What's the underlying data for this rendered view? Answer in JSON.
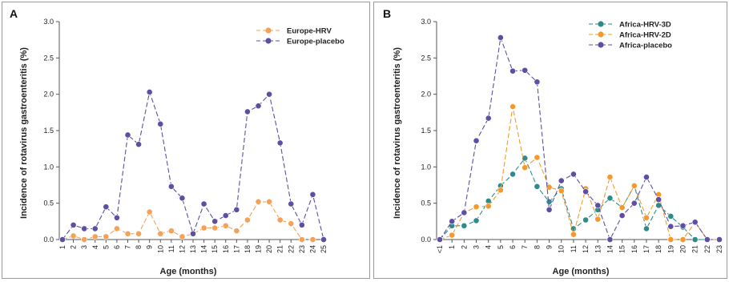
{
  "chart_data": [
    {
      "type": "line",
      "panel_letter": "A",
      "title": "",
      "xlabel": "Age (months)",
      "ylabel": "Incidence of rotavirus gastroenteritis (%)",
      "ylim": [
        0,
        3.0
      ],
      "yticks": [
        "0.0",
        "0.5",
        "1.0",
        "1.5",
        "2.0",
        "2.5",
        "3.0"
      ],
      "categories": [
        "1",
        "2",
        "3",
        "4",
        "5",
        "6",
        "7",
        "8",
        "9",
        "10",
        "11",
        "12",
        "13",
        "14",
        "15",
        "16",
        "17",
        "18",
        "19",
        "20",
        "21",
        "22",
        "23",
        "24",
        "25"
      ],
      "legend_position": "top-right",
      "series": [
        {
          "name": "Europe-HRV",
          "color": "#F4A25A",
          "values": [
            0,
            0.05,
            0,
            0.04,
            0.04,
            0.15,
            0.08,
            0.08,
            0.38,
            0.08,
            0.12,
            0.04,
            0.08,
            0.16,
            0.16,
            0.19,
            0.12,
            0.27,
            0.52,
            0.52,
            0.27,
            0.22,
            0,
            0,
            null
          ]
        },
        {
          "name": "Europe-placebo",
          "color": "#5E4FA2",
          "values": [
            0,
            0.2,
            0.15,
            0.15,
            0.45,
            0.3,
            1.44,
            1.31,
            2.03,
            1.59,
            0.73,
            0.57,
            0.08,
            0.49,
            0.25,
            0.33,
            0.41,
            1.76,
            1.84,
            2.0,
            1.33,
            0.49,
            0.2,
            0.62,
            0
          ]
        }
      ]
    },
    {
      "type": "line",
      "panel_letter": "B",
      "title": "",
      "xlabel": "Age (months)",
      "ylabel": "Incidence of rotavirus gastroenteritis (%)",
      "ylim": [
        0,
        3.0
      ],
      "yticks": [
        "0.0",
        "0.5",
        "1.0",
        "1.5",
        "2.0",
        "2.5",
        "3.0"
      ],
      "categories": [
        "<1",
        "1",
        "2",
        "3",
        "4",
        "5",
        "6",
        "7",
        "8",
        "9",
        "10",
        "11",
        "12",
        "13",
        "14",
        "15",
        "16",
        "17",
        "18",
        "19",
        "20",
        "21",
        "22",
        "23"
      ],
      "legend_position": "top-right",
      "series": [
        {
          "name": "Africa-HRV-3D",
          "color": "#2E8B8B",
          "values": [
            0,
            0.19,
            0.19,
            0.26,
            0.53,
            0.74,
            0.9,
            1.12,
            0.73,
            0.52,
            0.7,
            0.15,
            0.27,
            0.41,
            0.57,
            0.44,
            0.74,
            0.15,
            0.47,
            0.32,
            0.17,
            0,
            0,
            0
          ]
        },
        {
          "name": "Africa-HRV-2D",
          "color": "#F39A2E",
          "values": [
            0,
            0.06,
            0.37,
            0.45,
            0.46,
            0.68,
            1.83,
            0.99,
            1.13,
            0.72,
            0.67,
            0.07,
            0.7,
            0.28,
            0.86,
            0.44,
            0.74,
            0.3,
            0.62,
            0,
            0,
            0.24,
            0,
            0
          ]
        },
        {
          "name": "Africa-placebo",
          "color": "#5E4FA2",
          "values": [
            0,
            0.25,
            0.37,
            1.36,
            1.67,
            2.78,
            2.32,
            2.33,
            2.17,
            0.41,
            0.81,
            0.9,
            0.66,
            0.47,
            0,
            0.33,
            0.5,
            0.86,
            0.55,
            0.18,
            0.19,
            0.24,
            0,
            0
          ]
        }
      ]
    }
  ]
}
